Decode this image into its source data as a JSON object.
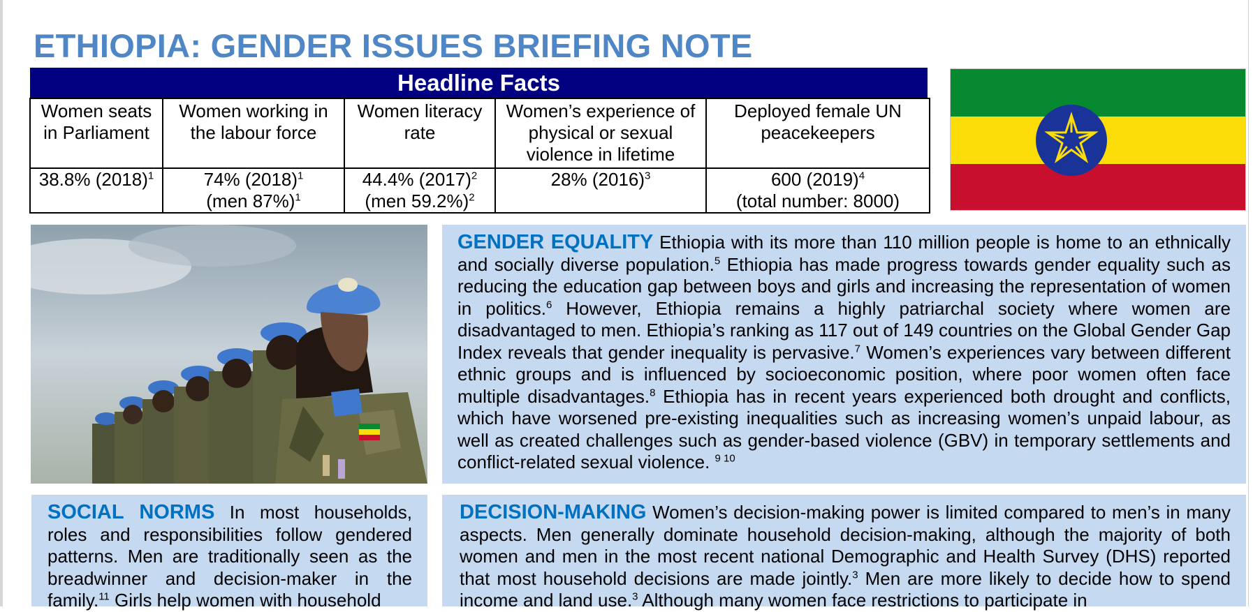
{
  "title": "ETHIOPIA: GENDER ISSUES BRIEFING NOTE",
  "headline_facts": {
    "header": "Headline Facts",
    "columns": [
      {
        "label": "Women seats in Parliament",
        "line1": "38.8% (2018)",
        "sup1": "1",
        "line2": "",
        "sup2": ""
      },
      {
        "label": "Women working in the labour force",
        "line1": "74% (2018)",
        "sup1": "1",
        "line2": "(men 87%)",
        "sup2": "1"
      },
      {
        "label": "Women literacy rate",
        "line1": "44.4% (2017)",
        "sup1": "2",
        "line2": "(men 59.2%)",
        "sup2": "2"
      },
      {
        "label": "Women’s experience of physical or sexual violence in lifetime",
        "line1": "28% (2016)",
        "sup1": "3",
        "line2": "",
        "sup2": ""
      },
      {
        "label": "Deployed female UN peacekeepers",
        "line1": "600 (2019)",
        "sup1": "4",
        "line2": "(total number: 8000)",
        "sup2": ""
      }
    ]
  },
  "flag": {
    "stripe_top": "#078930",
    "stripe_middle": "#fcdd09",
    "stripe_bottom": "#c8102e",
    "emblem_disc": "#1a3399",
    "emblem_star": "#fcdd09"
  },
  "photo": {
    "icon": "peacekeepers-photo"
  },
  "sections": {
    "gender_equality": {
      "heading": "GENDER EQUALITY",
      "t1": " Ethiopia with its more than 110 million people is home to an ethnically and socially diverse population.",
      "s1": "5",
      "t2": " Ethiopia has made progress towards gender equality such as reducing the education gap between boys and girls and increasing the representation of women in politics.",
      "s2": "6",
      "t3": " However, Ethiopia remains a highly patriarchal society where women are disadvantaged to men. Ethiopia’s ranking as 117 out of 149 countries on the Global Gender Gap Index reveals that gender inequality is pervasive.",
      "s3": "7",
      "t4": " Women’s experiences vary between different ethnic groups and is influenced by socioeconomic position, where poor women often face multiple disadvantages.",
      "s4": "8",
      "t5": " Ethiopia has in recent years experienced both drought and conflicts, which have worsened pre-existing inequalities such as increasing women’s unpaid labour, as well as created challenges such as gender-based violence (GBV) in temporary settlements and conflict-related sexual violence. ",
      "s5": "9 10"
    },
    "social_norms": {
      "heading": "SOCIAL NORMS",
      "t1": " In most households, roles and responsibilities follow gendered patterns. Men are traditionally seen as the breadwinner and decision-maker in the family.",
      "s1": "11",
      "t2": " Girls help women with household"
    },
    "decision_making": {
      "heading": "DECISION-MAKING",
      "t1": " Women’s decision-making power is limited compared to men’s in many aspects. Men generally dominate household decision-making, although the majority of both women and men in the most recent national Demographic and Health Survey (DHS) reported that most household decisions are made jointly.",
      "s1": "3",
      "t2": " Men are more likely to decide how to spend income and land use.",
      "s2": "3",
      "t3": " Although many women face restrictions to participate in"
    }
  }
}
